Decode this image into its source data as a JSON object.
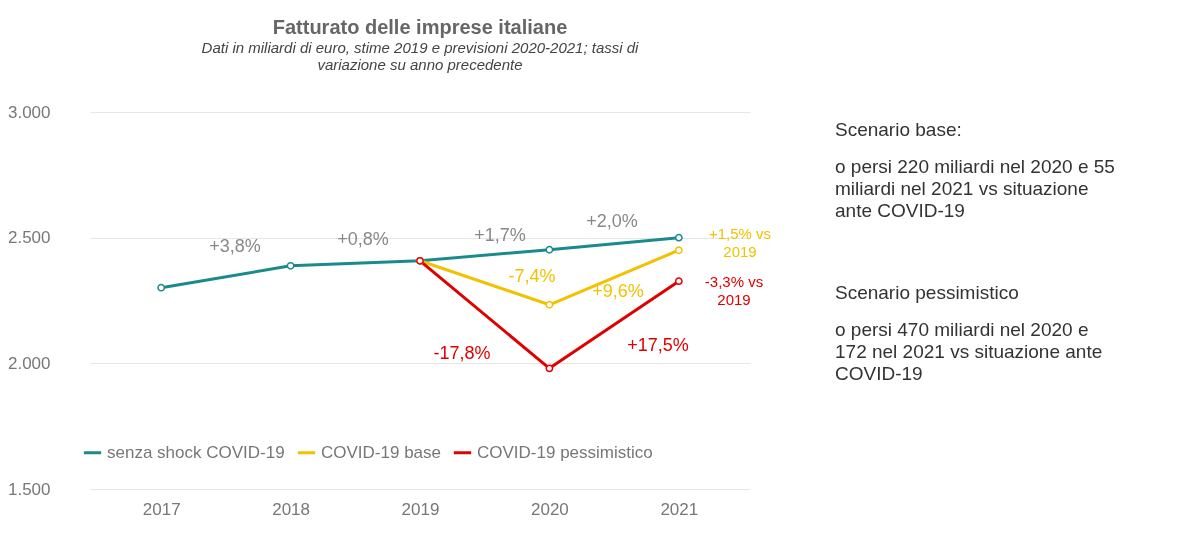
{
  "chart_data": {
    "type": "line",
    "title": "Fatturato delle imprese italiane",
    "subtitle": "Dati in miliardi di euro, stime 2019 e previsioni 2020-2021; tassi di\nvariazione su anno precedente",
    "categories": [
      "2017",
      "2018",
      "2019",
      "2020",
      "2021"
    ],
    "series": [
      {
        "name": "senza shock COVID-19",
        "color": "#1b8a8c",
        "values": [
          2301,
          2388,
          2408,
          2452,
          2500
        ]
      },
      {
        "name": "COVID-19 base",
        "color": "#f2c100",
        "values": [
          null,
          null,
          2408,
          2233,
          2450
        ]
      },
      {
        "name": "COVID-19 pessimistico",
        "color": "#e00000",
        "values": [
          null,
          null,
          2408,
          1980,
          2327
        ]
      }
    ],
    "ylim": [
      1500,
      3000
    ],
    "yticks": [
      {
        "value": 1500,
        "label": "1.500"
      },
      {
        "value": 2000,
        "label": "2.000"
      },
      {
        "value": 2500,
        "label": "2.500"
      },
      {
        "value": 3000,
        "label": "3.000"
      }
    ],
    "grid": "y",
    "legend": "bottom",
    "marker": "circle",
    "line_style": "solid",
    "annotations": [
      "+3,8%",
      "+0,8%",
      "+1,7%",
      "+2,0%",
      "-7,4%",
      "+9,6%",
      "+1,5% vs\n2019",
      "-17,8%",
      "+17,5%",
      "-3,3% vs\n2019",
      "Scenario base:",
      "o  persi 220 miliardi nel 2020 e 55\n    miliardi nel 2021 vs situazione\n    ante COVID-19",
      "Scenario pessimistico",
      "o  persi 470 miliardi nel 2020 e\n    172 nel 2021 vs situazione ante\n    COVID-19"
    ]
  }
}
